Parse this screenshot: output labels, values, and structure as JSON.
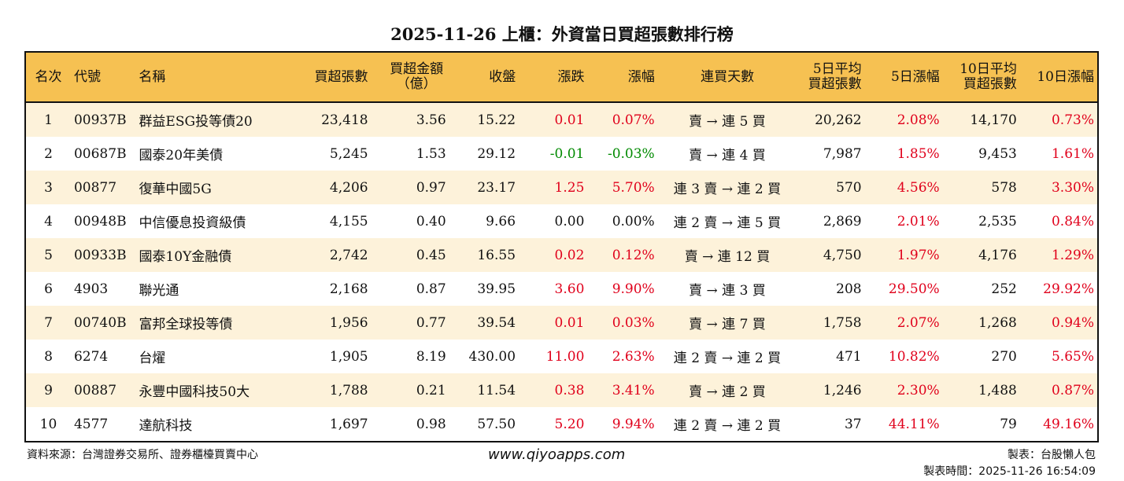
{
  "title": "2025-11-26 上櫃：外資當日買超張數排行榜",
  "headers": [
    "名次",
    "代號",
    "名稱",
    "買超張數",
    "買超金額\n（億）",
    "收盤",
    "漲跌",
    "漲幅",
    "連買天數",
    "5日平均\n買超張數",
    "5日漲幅",
    "10日平均\n買超張數",
    "10日漲幅"
  ],
  "colors": {
    "header_bg": "#f6c152",
    "alt_row_bg": "#fdf2da",
    "up": "#e0001b",
    "down": "#008a00"
  },
  "rows": [
    [
      "1",
      "00937B",
      "群益ESG投等債20",
      "23,418",
      "3.56",
      "15.22",
      "0.01",
      "0.07%",
      "賣 → 連 5 買",
      "20,262",
      "2.08%",
      "14,170",
      "0.73%"
    ],
    [
      "2",
      "00687B",
      "國泰20年美債",
      "5,245",
      "1.53",
      "29.12",
      "-0.01",
      "-0.03%",
      "賣 → 連 4 買",
      "7,987",
      "1.85%",
      "9,453",
      "1.61%"
    ],
    [
      "3",
      "00877",
      "復華中國5G",
      "4,206",
      "0.97",
      "23.17",
      "1.25",
      "5.70%",
      "連 3 賣 → 連 2 買",
      "570",
      "4.56%",
      "578",
      "3.30%"
    ],
    [
      "4",
      "00948B",
      "中信優息投資級債",
      "4,155",
      "0.40",
      "9.66",
      "0.00",
      "0.00%",
      "連 2 賣 → 連 5 買",
      "2,869",
      "2.01%",
      "2,535",
      "0.84%"
    ],
    [
      "5",
      "00933B",
      "國泰10Y金融債",
      "2,742",
      "0.45",
      "16.55",
      "0.02",
      "0.12%",
      "賣 → 連 12 買",
      "4,750",
      "1.97%",
      "4,176",
      "1.29%"
    ],
    [
      "6",
      "4903",
      "聯光通",
      "2,168",
      "0.87",
      "39.95",
      "3.60",
      "9.90%",
      "賣 → 連 3 買",
      "208",
      "29.50%",
      "252",
      "29.92%"
    ],
    [
      "7",
      "00740B",
      "富邦全球投等債",
      "1,956",
      "0.77",
      "39.54",
      "0.01",
      "0.03%",
      "賣 → 連 7 買",
      "1,758",
      "2.07%",
      "1,268",
      "0.94%"
    ],
    [
      "8",
      "6274",
      "台燿",
      "1,905",
      "8.19",
      "430.00",
      "11.00",
      "2.63%",
      "連 2 賣 → 連 2 買",
      "471",
      "10.82%",
      "270",
      "5.65%"
    ],
    [
      "9",
      "00887",
      "永豐中國科技50大",
      "1,788",
      "0.21",
      "11.54",
      "0.38",
      "3.41%",
      "賣 → 連 2 買",
      "1,246",
      "2.30%",
      "1,488",
      "0.87%"
    ],
    [
      "10",
      "4577",
      "達航科技",
      "1,697",
      "0.98",
      "57.50",
      "5.20",
      "9.94%",
      "連 2 賣 → 連 2 買",
      "37",
      "44.11%",
      "79",
      "49.16%"
    ]
  ],
  "footer": {
    "source": "資料來源：台灣證券交易所、證券櫃檯買賣中心",
    "website": "www.qiyoapps.com",
    "author": "製表：台股懶人包",
    "time": "製表時間：2025-11-26 16:54:09"
  }
}
